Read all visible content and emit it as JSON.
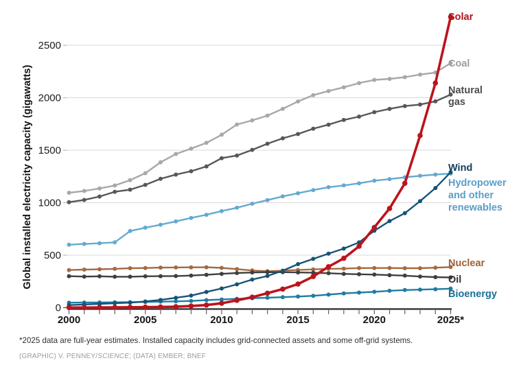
{
  "figure": {
    "y_axis_title": "Global installed electricity capacity (gigawatts)",
    "footnote": "*2025 data are full-year estimates. Installed capacity includes grid-connected assets and some off-grid systems.",
    "credit_prefix": "(GRAPHIC) V. PENNEY/",
    "credit_italic": "SCIENCE",
    "credit_suffix": "; (DATA) EMBER; BNEF"
  },
  "colors": {
    "grid": "#d8d8d8",
    "axis": "#3c3c3c",
    "year_tick": "#606060",
    "tick_label": "#1c1c1c",
    "zero_dash": "#444444"
  },
  "chart_data": {
    "type": "line",
    "title": "",
    "xlabel": "",
    "ylabel": "Global installed electricity capacity (gigawatts)",
    "x": [
      2000,
      2001,
      2002,
      2003,
      2004,
      2005,
      2006,
      2007,
      2008,
      2009,
      2010,
      2011,
      2012,
      2013,
      2014,
      2015,
      2016,
      2017,
      2018,
      2019,
      2020,
      2021,
      2022,
      2023,
      2024,
      2025
    ],
    "xtick_labels": [
      "2000",
      "2005",
      "2010",
      "2015",
      "2020",
      "2025*"
    ],
    "yticks": [
      0,
      500,
      1000,
      1500,
      2000,
      2500
    ],
    "ylim": [
      0,
      2800
    ],
    "grid": "horizontal-only",
    "legend_position": "direct-labels-right",
    "marker": "circle-every-year",
    "series": [
      {
        "id": "coal",
        "label_lines": [
          "Coal"
        ],
        "color": "#a8a8a8",
        "label_color": "#9e9e9e",
        "values": [
          1095,
          1112,
          1136,
          1164,
          1215,
          1281,
          1385,
          1464,
          1516,
          1570,
          1648,
          1745,
          1784,
          1830,
          1895,
          1965,
          2025,
          2064,
          2100,
          2140,
          2170,
          2180,
          2196,
          2221,
          2240,
          2330
        ]
      },
      {
        "id": "natural_gas",
        "label_lines": [
          "Natural",
          "gas"
        ],
        "color": "#575757",
        "label_color": "#4d4d4d",
        "values": [
          1005,
          1026,
          1059,
          1104,
          1124,
          1170,
          1228,
          1268,
          1300,
          1346,
          1424,
          1450,
          1503,
          1562,
          1614,
          1654,
          1705,
          1744,
          1788,
          1820,
          1863,
          1894,
          1921,
          1935,
          1966,
          2030
        ]
      },
      {
        "id": "hydro",
        "label_lines": [
          "Hydropower",
          "and other",
          "renewables"
        ],
        "color": "#66a9cf",
        "label_color": "#5b9ec7",
        "values": [
          600,
          607,
          614,
          622,
          730,
          762,
          790,
          822,
          855,
          885,
          920,
          952,
          990,
          1025,
          1060,
          1090,
          1120,
          1148,
          1165,
          1185,
          1210,
          1225,
          1242,
          1256,
          1268,
          1278
        ]
      },
      {
        "id": "nuclear",
        "label_lines": [
          "Nuclear"
        ],
        "color": "#a36a45",
        "label_color": "#9c6038",
        "values": [
          358,
          363,
          366,
          370,
          376,
          378,
          382,
          383,
          384,
          385,
          379,
          367,
          354,
          347,
          352,
          359,
          365,
          370,
          372,
          377,
          378,
          378,
          376,
          376,
          381,
          387
        ]
      },
      {
        "id": "oil",
        "label_lines": [
          "Oil"
        ],
        "color": "#3f3f3f",
        "label_color": "#2e2e2e",
        "values": [
          300,
          296,
          299,
          295,
          295,
          299,
          300,
          301,
          306,
          313,
          322,
          330,
          335,
          338,
          338,
          336,
          333,
          328,
          322,
          318,
          315,
          310,
          305,
          297,
          291,
          288
        ]
      },
      {
        "id": "bioenergy",
        "label_lines": [
          "Bioenergy"
        ],
        "color": "#1d7ca3",
        "label_color": "#156f94",
        "values": [
          48,
          49,
          50,
          51,
          52,
          54,
          57,
          60,
          64,
          72,
          78,
          84,
          90,
          95,
          100,
          106,
          113,
          124,
          136,
          144,
          151,
          161,
          168,
          172,
          176,
          181
        ]
      },
      {
        "id": "wind",
        "label_lines": [
          "Wind"
        ],
        "color": "#175377",
        "label_color": "#123d59",
        "values": [
          25,
          30,
          36,
          42,
          48,
          59,
          74,
          94,
          115,
          150,
          183,
          222,
          268,
          302,
          352,
          415,
          465,
          515,
          563,
          622,
          733,
          825,
          900,
          1015,
          1140,
          1290
        ]
      },
      {
        "id": "solar",
        "label_lines": [
          "Solar"
        ],
        "color": "#bb141d",
        "label_color": "#b1121b",
        "values": [
          1,
          1,
          2,
          3,
          4,
          5,
          7,
          9,
          16,
          25,
          42,
          70,
          100,
          138,
          177,
          225,
          297,
          390,
          470,
          585,
          765,
          945,
          1185,
          1640,
          2140,
          2770
        ]
      }
    ]
  }
}
